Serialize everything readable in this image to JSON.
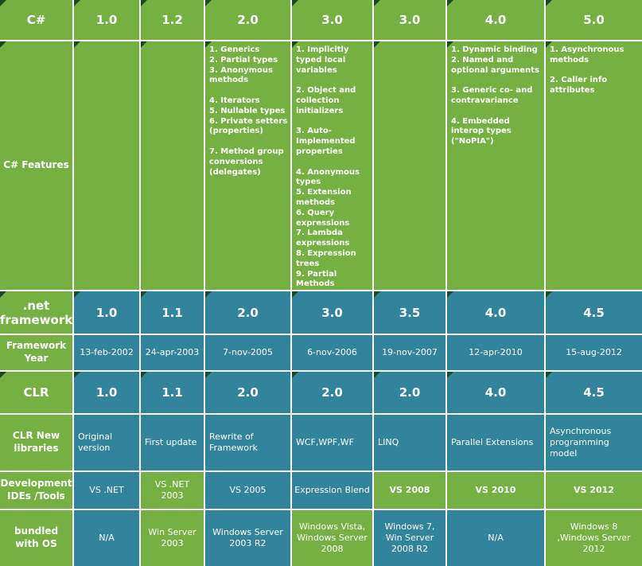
{
  "colors": {
    "green": "#76b043",
    "teal_blue": "#31849b",
    "corner_fold": "#1a4a23",
    "text": "#ffffff",
    "grid_lines": "#ffffff"
  },
  "chart_data": {
    "type": "table",
    "title": "C# language, .NET Framework and CLR version history",
    "column_count": 7,
    "rows": {
      "csharp": {
        "label": "C#",
        "values": [
          "1.0",
          "1.2",
          "2.0",
          "3.0",
          "3.0",
          "4.0",
          "5.0"
        ]
      },
      "features": {
        "label": "C# Features",
        "values": [
          "",
          "",
          "1. Generics\n2. Partial types\n3. Anonymous methods\n\n4. Iterators\n5. Nullable types\n6. Private setters (properties)\n\n7. Method group conversions (delegates)",
          "1. Implicitly typed local variables\n\n2. Object and collection initializers\n\n3. Auto-Implemented properties\n\n4. Anonymous types\n5. Extension methods\n6. Query expressions\n7. Lambda expressions\n8. Expression trees\n9. Partial Methods",
          "",
          "1. Dynamic binding\n2. Named and optional arguments\n\n3. Generic co- and contravariance\n\n4. Embedded interop types (\"NoPIA\")",
          "1. Asynchronous methods\n\n2. Caller info attributes"
        ]
      },
      "framework": {
        "label": ".net framework",
        "values": [
          "1.0",
          "1.1",
          "2.0",
          "3.0",
          "3.5",
          "4.0",
          "4.5"
        ]
      },
      "year": {
        "label": "Framework Year",
        "values": [
          "13-feb-2002",
          "24-apr-2003",
          "7-nov-2005",
          "6-nov-2006",
          "19-nov-2007",
          "12-apr-2010",
          "15-aug-2012"
        ]
      },
      "clr": {
        "label": "CLR",
        "values": [
          "1.0",
          "1.1",
          "2.0",
          "2.0",
          "2.0",
          "4.0",
          "4.5"
        ]
      },
      "libraries": {
        "label": "CLR New libraries",
        "values": [
          "Original version",
          "First update",
          "Rewrite of Framework",
          "WCF,WPF,WF",
          "LINQ",
          "Parallel Extensions",
          "Asynchronous programming model"
        ]
      },
      "ides": {
        "label": "Development IDEs /Tools",
        "values": [
          "VS .NET",
          "VS .NET 2003",
          "VS 2005",
          "Expression Blend",
          "VS 2008",
          "VS 2010",
          "VS 2012"
        ]
      },
      "os": {
        "label": "bundled with OS",
        "values": [
          "N/A",
          "Win Server 2003",
          "Windows Server 2003 R2",
          "Windows Vista, Windows Server 2008",
          "Windows 7, Win Server 2008 R2",
          "N/A",
          "Windows 8 ,Windows Server 2012"
        ]
      }
    }
  }
}
